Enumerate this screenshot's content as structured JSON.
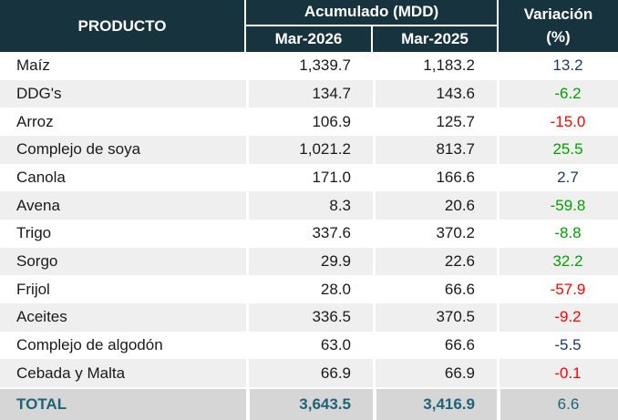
{
  "colors": {
    "header_bg": "#17333E",
    "header_text": "#FFFFFF",
    "stripe": "#EFEFEF",
    "total_bg": "#D6D6D6",
    "total_text": "#1F6378",
    "body_text": "#1A1A1A",
    "var_blue": "#1F3864",
    "var_green": "#00A000",
    "var_red": "#FF0000"
  },
  "table": {
    "header": {
      "producto": "PRODUCTO",
      "acumulado": "Acumulado (MDD)",
      "mar2026": "Mar-2026",
      "mar2025": "Mar-2025",
      "variacion_line1": "Variación",
      "variacion_line2": "(%)"
    },
    "rows": [
      {
        "producto": "Maíz",
        "mar2026": "1,339.7",
        "mar2025": "1,183.2",
        "variacion": "13.2",
        "var_color": "#1F3864"
      },
      {
        "producto": "DDG's",
        "mar2026": "134.7",
        "mar2025": "143.6",
        "variacion": "-6.2",
        "var_color": "#00A000"
      },
      {
        "producto": "Arroz",
        "mar2026": "106.9",
        "mar2025": "125.7",
        "variacion": "-15.0",
        "var_color": "#FF0000"
      },
      {
        "producto": "Complejo de soya",
        "mar2026": "1,021.2",
        "mar2025": "813.7",
        "variacion": "25.5",
        "var_color": "#00A000"
      },
      {
        "producto": "Canola",
        "mar2026": "171.0",
        "mar2025": "166.6",
        "variacion": "2.7",
        "var_color": "#1F3864"
      },
      {
        "producto": "Avena",
        "mar2026": "8.3",
        "mar2025": "20.6",
        "variacion": "-59.8",
        "var_color": "#00A000"
      },
      {
        "producto": "Trigo",
        "mar2026": "337.6",
        "mar2025": "370.2",
        "variacion": "-8.8",
        "var_color": "#00A000"
      },
      {
        "producto": "Sorgo",
        "mar2026": "29.9",
        "mar2025": "22.6",
        "variacion": "32.2",
        "var_color": "#00A000"
      },
      {
        "producto": "Frijol",
        "mar2026": "28.0",
        "mar2025": "66.6",
        "variacion": "-57.9",
        "var_color": "#FF0000"
      },
      {
        "producto": "Aceites",
        "mar2026": "336.5",
        "mar2025": "370.5",
        "variacion": "-9.2",
        "var_color": "#FF0000"
      },
      {
        "producto": "Complejo de algodón",
        "mar2026": "63.0",
        "mar2025": "66.6",
        "variacion": "-5.5",
        "var_color": "#1F3864"
      },
      {
        "producto": "Cebada y Malta",
        "mar2026": "66.9",
        "mar2025": "66.9",
        "variacion": "-0.1",
        "var_color": "#FF0000"
      }
    ],
    "total": {
      "label": "TOTAL",
      "mar2026": "3,643.5",
      "mar2025": "3,416.9",
      "variacion": "6.6"
    }
  },
  "chart_data": {
    "type": "table",
    "title": "Acumulado (MDD) por producto con variación porcentual",
    "columns": [
      "PRODUCTO",
      "Acumulado (MDD) Mar-2026",
      "Acumulado (MDD) Mar-2025",
      "Variación (%)"
    ],
    "rows": [
      [
        "Maíz",
        1339.7,
        1183.2,
        13.2
      ],
      [
        "DDG's",
        134.7,
        143.6,
        -6.2
      ],
      [
        "Arroz",
        106.9,
        125.7,
        -15.0
      ],
      [
        "Complejo de soya",
        1021.2,
        813.7,
        25.5
      ],
      [
        "Canola",
        171.0,
        166.6,
        2.7
      ],
      [
        "Avena",
        8.3,
        20.6,
        -59.8
      ],
      [
        "Trigo",
        337.6,
        370.2,
        -8.8
      ],
      [
        "Sorgo",
        29.9,
        22.6,
        32.2
      ],
      [
        "Frijol",
        28.0,
        66.6,
        -57.9
      ],
      [
        "Aceites",
        336.5,
        370.5,
        -9.2
      ],
      [
        "Complejo de algodón",
        63.0,
        66.6,
        -5.5
      ],
      [
        "Cebada y Malta",
        66.9,
        66.9,
        -0.1
      ]
    ],
    "total_row": [
      "TOTAL",
      3643.5,
      3416.9,
      6.6
    ]
  }
}
